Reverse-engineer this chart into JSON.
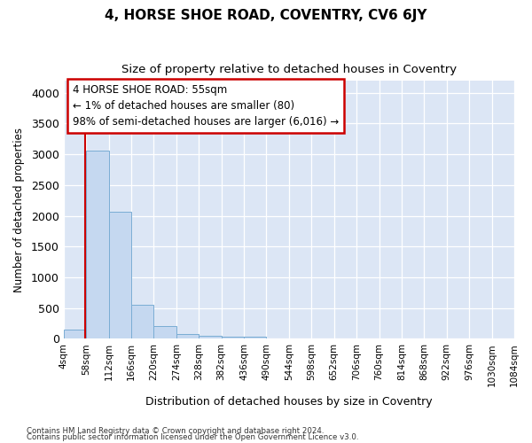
{
  "title1": "4, HORSE SHOE ROAD, COVENTRY, CV6 6JY",
  "title2": "Size of property relative to detached houses in Coventry",
  "xlabel": "Distribution of detached houses by size in Coventry",
  "ylabel": "Number of detached properties",
  "footer1": "Contains HM Land Registry data © Crown copyright and database right 2024.",
  "footer2": "Contains public sector information licensed under the Open Government Licence v3.0.",
  "annotation_line1": "4 HORSE SHOE ROAD: 55sqm",
  "annotation_line2": "← 1% of detached houses are smaller (80)",
  "annotation_line3": "98% of semi-detached houses are larger (6,016) →",
  "property_size": 55,
  "bar_color": "#c5d8f0",
  "bar_edge_color": "#7aadd4",
  "vline_color": "#cc0000",
  "bin_edges": [
    4,
    58,
    112,
    166,
    220,
    274,
    328,
    382,
    436,
    490,
    544,
    598,
    652,
    706,
    760,
    814,
    868,
    922,
    976,
    1030,
    1084
  ],
  "bar_heights": [
    150,
    3060,
    2070,
    550,
    205,
    75,
    55,
    40,
    35,
    0,
    0,
    0,
    0,
    0,
    0,
    0,
    0,
    0,
    0,
    0
  ],
  "ylim": [
    0,
    4200
  ],
  "yticks": [
    0,
    500,
    1000,
    1500,
    2000,
    2500,
    3000,
    3500,
    4000
  ],
  "fig_bg": "#ffffff",
  "plot_bg": "#dce6f5"
}
